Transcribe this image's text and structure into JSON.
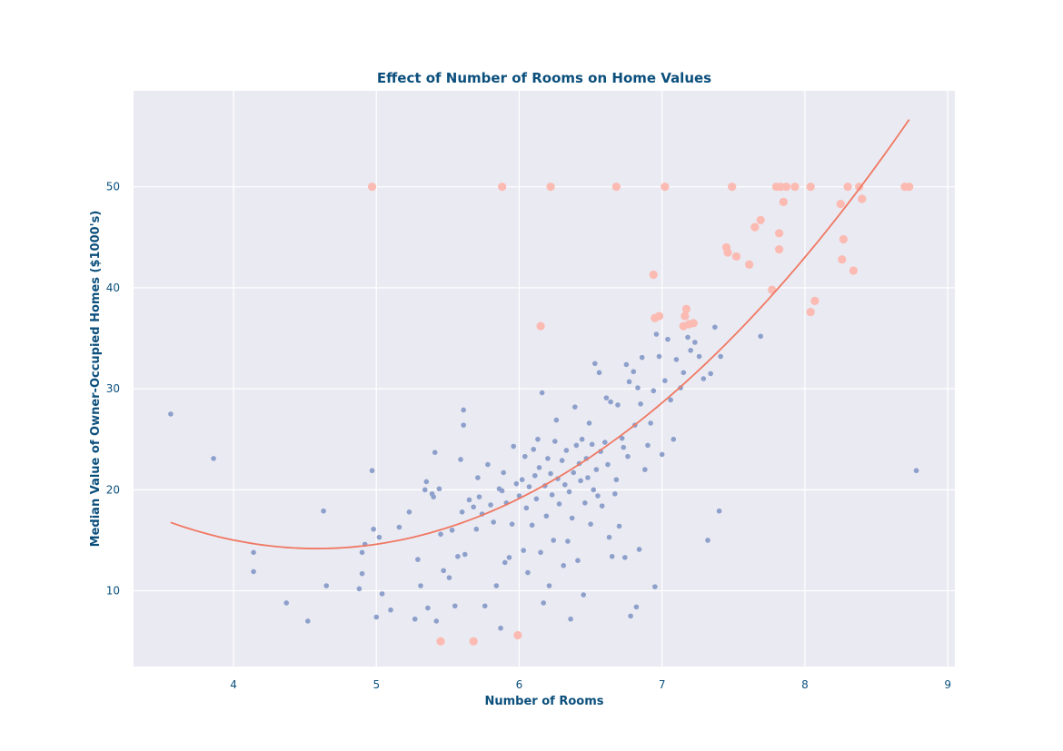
{
  "chart_data": {
    "type": "scatter",
    "title": "Effect of Number of Rooms on Home Values",
    "xlabel": "Number of Rooms",
    "ylabel": "Median Value of Owner-Occupied Homes ($1000's)",
    "xlim": [
      3.3,
      9.05
    ],
    "ylim": [
      2.5,
      59.5
    ],
    "xticks": [
      4,
      5,
      6,
      7,
      8,
      9
    ],
    "yticks": [
      10,
      20,
      30,
      40,
      50
    ],
    "grid": true,
    "colors": {
      "background": "#eaeaf2",
      "grid": "#ffffff",
      "points": "#8da0cb",
      "highlight": "#fbbab2",
      "fit_line": "#f07862",
      "text": "#0b4f7c"
    },
    "series": [
      {
        "kind": "points",
        "points": [
          [
            3.56,
            27.5
          ],
          [
            3.86,
            23.1
          ],
          [
            4.14,
            13.8
          ],
          [
            4.14,
            11.9
          ],
          [
            4.37,
            8.8
          ],
          [
            4.52,
            7.0
          ],
          [
            4.63,
            17.9
          ],
          [
            4.65,
            10.5
          ],
          [
            4.88,
            10.2
          ],
          [
            4.9,
            11.7
          ],
          [
            4.9,
            13.8
          ],
          [
            4.92,
            14.6
          ],
          [
            4.97,
            21.9
          ],
          [
            4.98,
            16.1
          ],
          [
            5.0,
            7.4
          ],
          [
            5.02,
            15.3
          ],
          [
            5.04,
            9.7
          ],
          [
            5.1,
            8.1
          ],
          [
            5.16,
            16.3
          ],
          [
            5.23,
            17.8
          ],
          [
            5.27,
            7.2
          ],
          [
            5.29,
            13.1
          ],
          [
            5.31,
            10.5
          ],
          [
            5.34,
            20.0
          ],
          [
            5.35,
            20.8
          ],
          [
            5.36,
            8.3
          ],
          [
            5.39,
            19.6
          ],
          [
            5.4,
            19.3
          ],
          [
            5.41,
            23.7
          ],
          [
            5.42,
            7.0
          ],
          [
            5.44,
            20.1
          ],
          [
            5.45,
            15.6
          ],
          [
            5.47,
            12.0
          ],
          [
            5.51,
            11.3
          ],
          [
            5.53,
            16.0
          ],
          [
            5.55,
            8.5
          ],
          [
            5.57,
            13.4
          ],
          [
            5.59,
            23.0
          ],
          [
            5.6,
            17.8
          ],
          [
            5.61,
            27.9
          ],
          [
            5.61,
            26.4
          ],
          [
            5.62,
            13.6
          ],
          [
            5.65,
            19.0
          ],
          [
            5.68,
            18.3
          ],
          [
            5.7,
            16.1
          ],
          [
            5.71,
            21.2
          ],
          [
            5.72,
            19.3
          ],
          [
            5.74,
            17.6
          ],
          [
            5.76,
            8.5
          ],
          [
            5.78,
            22.5
          ],
          [
            5.8,
            18.5
          ],
          [
            5.82,
            16.8
          ],
          [
            5.84,
            10.5
          ],
          [
            5.86,
            20.1
          ],
          [
            5.87,
            6.3
          ],
          [
            5.88,
            19.9
          ],
          [
            5.89,
            21.7
          ],
          [
            5.9,
            12.8
          ],
          [
            5.91,
            18.7
          ],
          [
            5.93,
            13.3
          ],
          [
            5.95,
            16.6
          ],
          [
            5.96,
            24.3
          ],
          [
            5.98,
            20.6
          ],
          [
            6.0,
            19.4
          ],
          [
            6.02,
            21.0
          ],
          [
            6.03,
            14.0
          ],
          [
            6.04,
            23.3
          ],
          [
            6.05,
            18.2
          ],
          [
            6.06,
            11.8
          ],
          [
            6.07,
            20.3
          ],
          [
            6.09,
            16.5
          ],
          [
            6.1,
            24.0
          ],
          [
            6.11,
            21.4
          ],
          [
            6.12,
            19.1
          ],
          [
            6.13,
            25.0
          ],
          [
            6.14,
            22.2
          ],
          [
            6.15,
            13.8
          ],
          [
            6.16,
            29.6
          ],
          [
            6.17,
            8.8
          ],
          [
            6.18,
            20.4
          ],
          [
            6.19,
            17.4
          ],
          [
            6.2,
            23.1
          ],
          [
            6.21,
            10.5
          ],
          [
            6.22,
            21.6
          ],
          [
            6.23,
            19.5
          ],
          [
            6.24,
            15.0
          ],
          [
            6.25,
            24.8
          ],
          [
            6.26,
            26.9
          ],
          [
            6.27,
            21.1
          ],
          [
            6.28,
            18.6
          ],
          [
            6.3,
            22.9
          ],
          [
            6.31,
            12.5
          ],
          [
            6.32,
            20.5
          ],
          [
            6.33,
            23.9
          ],
          [
            6.34,
            14.9
          ],
          [
            6.35,
            19.8
          ],
          [
            6.36,
            7.2
          ],
          [
            6.37,
            17.2
          ],
          [
            6.38,
            21.7
          ],
          [
            6.39,
            28.2
          ],
          [
            6.4,
            24.4
          ],
          [
            6.41,
            13.0
          ],
          [
            6.42,
            22.6
          ],
          [
            6.43,
            20.9
          ],
          [
            6.44,
            25.0
          ],
          [
            6.45,
            9.6
          ],
          [
            6.46,
            18.7
          ],
          [
            6.47,
            23.1
          ],
          [
            6.48,
            21.2
          ],
          [
            6.49,
            26.6
          ],
          [
            6.5,
            16.6
          ],
          [
            6.51,
            24.5
          ],
          [
            6.52,
            20.0
          ],
          [
            6.53,
            32.5
          ],
          [
            6.54,
            22.0
          ],
          [
            6.55,
            19.4
          ],
          [
            6.56,
            31.6
          ],
          [
            6.57,
            23.8
          ],
          [
            6.58,
            18.4
          ],
          [
            6.6,
            24.7
          ],
          [
            6.61,
            29.1
          ],
          [
            6.62,
            22.5
          ],
          [
            6.63,
            15.3
          ],
          [
            6.64,
            28.7
          ],
          [
            6.65,
            13.4
          ],
          [
            6.67,
            19.6
          ],
          [
            6.68,
            21.0
          ],
          [
            6.69,
            28.4
          ],
          [
            6.7,
            16.4
          ],
          [
            6.72,
            25.1
          ],
          [
            6.73,
            24.2
          ],
          [
            6.74,
            13.3
          ],
          [
            6.75,
            32.4
          ],
          [
            6.76,
            23.3
          ],
          [
            6.77,
            30.7
          ],
          [
            6.78,
            7.5
          ],
          [
            6.8,
            31.7
          ],
          [
            6.81,
            26.4
          ],
          [
            6.82,
            8.4
          ],
          [
            6.83,
            30.1
          ],
          [
            6.84,
            14.1
          ],
          [
            6.85,
            28.5
          ],
          [
            6.86,
            33.1
          ],
          [
            6.88,
            22.0
          ],
          [
            6.9,
            24.4
          ],
          [
            6.92,
            26.6
          ],
          [
            6.94,
            29.8
          ],
          [
            6.95,
            10.4
          ],
          [
            6.96,
            35.4
          ],
          [
            6.98,
            33.2
          ],
          [
            7.0,
            23.5
          ],
          [
            7.02,
            30.8
          ],
          [
            7.04,
            34.9
          ],
          [
            7.06,
            28.9
          ],
          [
            7.08,
            25.0
          ],
          [
            7.1,
            32.9
          ],
          [
            7.13,
            30.1
          ],
          [
            7.15,
            31.6
          ],
          [
            7.18,
            35.1
          ],
          [
            7.2,
            33.8
          ],
          [
            7.23,
            34.6
          ],
          [
            7.26,
            33.2
          ],
          [
            7.29,
            31.0
          ],
          [
            7.32,
            15.0
          ],
          [
            7.34,
            31.5
          ],
          [
            7.37,
            36.1
          ],
          [
            7.4,
            17.9
          ],
          [
            7.41,
            33.2
          ],
          [
            7.69,
            35.2
          ],
          [
            8.78,
            21.9
          ]
        ]
      },
      {
        "kind": "highlight",
        "points": [
          [
            4.97,
            50.0
          ],
          [
            5.45,
            5.0
          ],
          [
            5.68,
            5.0
          ],
          [
            5.88,
            50.0
          ],
          [
            5.99,
            5.6
          ],
          [
            6.15,
            36.2
          ],
          [
            6.22,
            50.0
          ],
          [
            6.68,
            50.0
          ],
          [
            6.94,
            41.3
          ],
          [
            6.95,
            37.0
          ],
          [
            6.98,
            37.2
          ],
          [
            7.02,
            50.0
          ],
          [
            7.15,
            36.2
          ],
          [
            7.16,
            37.2
          ],
          [
            7.17,
            37.9
          ],
          [
            7.19,
            36.4
          ],
          [
            7.22,
            36.5
          ],
          [
            7.45,
            44.0
          ],
          [
            7.46,
            43.5
          ],
          [
            7.49,
            50.0
          ],
          [
            7.52,
            43.1
          ],
          [
            7.61,
            42.3
          ],
          [
            7.65,
            46.0
          ],
          [
            7.69,
            46.7
          ],
          [
            7.77,
            39.8
          ],
          [
            7.8,
            50.0
          ],
          [
            7.82,
            45.4
          ],
          [
            7.82,
            43.8
          ],
          [
            7.83,
            50.0
          ],
          [
            7.85,
            48.5
          ],
          [
            7.87,
            50.0
          ],
          [
            7.93,
            50.0
          ],
          [
            8.04,
            50.0
          ],
          [
            8.04,
            37.6
          ],
          [
            8.07,
            38.7
          ],
          [
            8.25,
            48.3
          ],
          [
            8.26,
            42.8
          ],
          [
            8.27,
            44.8
          ],
          [
            8.3,
            50.0
          ],
          [
            8.34,
            41.7
          ],
          [
            8.38,
            50.0
          ],
          [
            8.4,
            48.8
          ],
          [
            8.7,
            50.0
          ],
          [
            8.73,
            50.0
          ]
        ]
      },
      {
        "kind": "fit",
        "x_range": [
          3.56,
          8.73
        ],
        "coefficients": [
          66.06,
          -22.64,
          2.47
        ]
      }
    ]
  }
}
